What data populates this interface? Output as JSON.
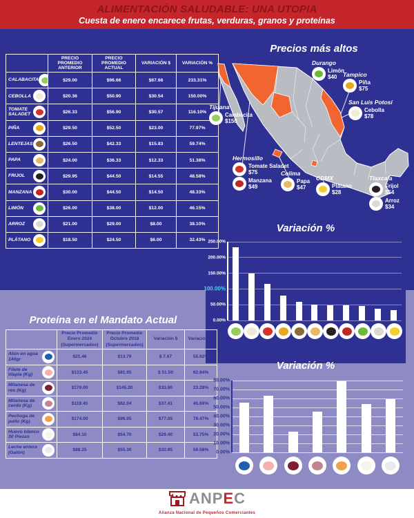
{
  "header": {
    "title": "ALIMENTACIÓN SALUDABLE: UNA UTOPIA",
    "subtitle": "Cuesta de enero encarece frutas, verduras, granos y proteínas"
  },
  "produce_table": {
    "columns": [
      "PRECIO  PROMEDIO ANTERIOR",
      "PRECIO  PROMEDIO ACTUAL",
      "VARIACIÓN $",
      "VARIACIÓN %"
    ],
    "rows": [
      {
        "name": "CALABACITA",
        "icon": "calabacita",
        "anterior": "$29.00",
        "actual": "$96.66",
        "variacion": "$67.66",
        "pct": "233.31%"
      },
      {
        "name": "CEBOLLA",
        "icon": "cebolla",
        "anterior": "$20.36",
        "actual": "$50.90",
        "variacion": "$30.54",
        "pct": "150.00%"
      },
      {
        "name": "TOMATE SALADET",
        "icon": "tomate",
        "anterior": "$26.33",
        "actual": "$56.90",
        "variacion": "$30.57",
        "pct": "116.10%"
      },
      {
        "name": "PIÑA",
        "icon": "pina",
        "anterior": "$29.50",
        "actual": "$52.50",
        "variacion": "$23.00",
        "pct": "77.97%"
      },
      {
        "name": "LENTEJAS",
        "icon": "lentejas",
        "anterior": "$26.50",
        "actual": "$42.33",
        "variacion": "$15.83",
        "pct": "59.74%"
      },
      {
        "name": "PAPA",
        "icon": "papa",
        "anterior": "$24.00",
        "actual": "$36.33",
        "variacion": "$12.33",
        "pct": "51.38%"
      },
      {
        "name": "FRIJOL",
        "icon": "frijol",
        "anterior": "$29.95",
        "actual": "$44.50",
        "variacion": "$14.55",
        "pct": "48.58%"
      },
      {
        "name": "MANZANA",
        "icon": "manzana",
        "anterior": "$30.00",
        "actual": "$44.50",
        "variacion": "$14.50",
        "pct": "48.33%"
      },
      {
        "name": "LIMÓN",
        "icon": "limon",
        "anterior": "$26.00",
        "actual": "$38.00",
        "variacion": "$12.00",
        "pct": "46.15%"
      },
      {
        "name": "ARROZ",
        "icon": "arroz",
        "anterior": "$21.00",
        "actual": "$29.00",
        "variacion": "$8.00",
        "pct": "38.10%"
      },
      {
        "name": "PLÁTANO",
        "icon": "platano",
        "anterior": "$18.50",
        "actual": "$24.50",
        "variacion": "$6.00",
        "pct": "32.43%"
      }
    ]
  },
  "map": {
    "title": "Precios más altos",
    "locations": [
      {
        "id": "tijuana",
        "city": "Tijuana",
        "items": [
          {
            "icon": "calabacita",
            "name": "Calabacita",
            "price": "$150"
          }
        ]
      },
      {
        "id": "durango",
        "city": "Durango",
        "items": [
          {
            "icon": "limon",
            "name": "Limón",
            "price": "$40"
          }
        ]
      },
      {
        "id": "tampico",
        "city": "Tampico",
        "items": [
          {
            "icon": "pina",
            "name": "Piña",
            "price": "$75"
          }
        ]
      },
      {
        "id": "slp",
        "city": "San Luis Potosí",
        "items": [
          {
            "icon": "cebolla",
            "name": "Cebolla",
            "price": "$78"
          }
        ]
      },
      {
        "id": "hermosillo",
        "city": "Hermosillo",
        "items": [
          {
            "icon": "tomate",
            "name": "Tomate Saladet",
            "price": "$75"
          },
          {
            "icon": "manzana",
            "name": "Manzana",
            "price": "$49"
          }
        ]
      },
      {
        "id": "colima",
        "city": "Colima",
        "items": [
          {
            "icon": "papa",
            "name": "Papa",
            "price": "$47"
          }
        ]
      },
      {
        "id": "cdmx",
        "city": "CDMX",
        "items": [
          {
            "icon": "platano",
            "name": "Plátano",
            "price": "$28"
          }
        ]
      },
      {
        "id": "tlaxcala",
        "city": "Tlaxcala",
        "items": [
          {
            "icon": "frijol",
            "name": "Frijol",
            "price": "$54"
          },
          {
            "icon": "arroz",
            "name": "Arroz",
            "price": "$34"
          }
        ]
      }
    ]
  },
  "chart_data": [
    {
      "type": "bar",
      "title": "Variación %",
      "categories": [
        "Calabacita",
        "Cebolla",
        "Tomate Saladet",
        "Piña",
        "Lentejas",
        "Papa",
        "Frijol",
        "Manzana",
        "Limón",
        "Arroz",
        "Plátano"
      ],
      "icons": [
        "calabacita",
        "cebolla",
        "tomate",
        "pina",
        "lentejas",
        "papa",
        "frijol",
        "manzana",
        "limon",
        "arroz",
        "platano"
      ],
      "values": [
        233.31,
        150.0,
        116.1,
        77.97,
        59.74,
        51.38,
        48.58,
        48.33,
        46.15,
        38.1,
        32.43
      ],
      "ylim": [
        0,
        250
      ],
      "yticks": [
        "0.00%",
        "50.00%",
        "100.00%",
        "150.00%",
        "200.00%",
        "250.00%"
      ],
      "highlight_tick": "100.00%",
      "grid": true,
      "bar_color": "#ffffff"
    },
    {
      "type": "bar",
      "title": "Variación %",
      "categories": [
        "Atún en agua",
        "Filete de tilapia",
        "Milanesa de res",
        "Milanesa de cerdo",
        "Pechuga de pollo",
        "Huevo blanco",
        "Leche entera"
      ],
      "icons": [
        "atun",
        "tilapia",
        "res",
        "cerdo",
        "pollo",
        "huevo",
        "leche"
      ],
      "values": [
        55.62,
        62.84,
        23.28,
        45.6,
        79.47,
        53.75,
        59.58
      ],
      "ylim": [
        0,
        80
      ],
      "yticks": [
        "0.00%",
        "10.00%",
        "20.00%",
        "30.00%",
        "40.00%",
        "50.00%",
        "60.00%",
        "70.00%",
        "80.00%"
      ],
      "grid": true,
      "bar_color": "#ffffff"
    }
  ],
  "protein_table": {
    "title": "Proteína en el Mandato Actual",
    "columns": [
      "Precio Promedio Enero 2024 (Supermercados)",
      "Precio Promedio Octubre 2018 (Supermercados)",
      "Variación $",
      "Variación %"
    ],
    "rows": [
      {
        "name": "Atún en agua 140gr",
        "icon": "atun",
        "enero": "$21.46",
        "octubre": "$13.79",
        "variacion": "$ 7.67",
        "pct": "55.62%"
      },
      {
        "name": "Filete de tilapia (Kg)",
        "icon": "tilapia",
        "enero": "$133.45",
        "octubre": "$81.95",
        "variacion": "$ 51.50",
        "pct": "62.84%"
      },
      {
        "name": "Milanesa de res (Kg)",
        "icon": "res",
        "enero": "$179.00",
        "octubre": "$145.20",
        "variacion": "$33.80",
        "pct": "23.28%"
      },
      {
        "name": "Milanesa de cerdo (Kg)",
        "icon": "cerdo",
        "enero": "$119.45",
        "octubre": "$82.04",
        "variacion": "$37.41",
        "pct": "45.60%"
      },
      {
        "name": "Pechuga de pollo (Kg)",
        "icon": "pollo",
        "enero": "$174.00",
        "octubre": "$96.95",
        "variacion": "$77.05",
        "pct": "79.47%"
      },
      {
        "name": "Huevo blanco 30 Piezas",
        "icon": "huevo",
        "enero": "$84.10",
        "octubre": "$54.70",
        "variacion": "$29.40",
        "pct": "53.75%"
      },
      {
        "name": "Leche entera (Galón)",
        "icon": "leche",
        "enero": "$88.25",
        "octubre": "$55.30",
        "variacion": "$32.95",
        "pct": "59.58%"
      }
    ]
  },
  "footer": {
    "logo_gray1": "ANP",
    "logo_red": "E",
    "logo_gray2": "C",
    "tagline": "Alianza Nacional de Pequeños Comerciantes"
  },
  "colors": {
    "background": "#2e3192",
    "panel_lavender": "#8e8bc4",
    "header_red": "#c4262b",
    "header_title": "#8c1417",
    "accent_cyan": "#41d6f3",
    "map_state_gray": "#b9bcc3",
    "map_highlight_orange": "#f26430",
    "bar_white": "#ffffff"
  },
  "icon_colors": {
    "calabacita": "#9acb5e",
    "cebolla": "#f1ead8",
    "tomate": "#d8332a",
    "pina": "#e8a81c",
    "lentejas": "#8a6b3c",
    "papa": "#e7b968",
    "frijol": "#262024",
    "manzana": "#bf2724",
    "limon": "#6cba3a",
    "arroz": "#dcd9d3",
    "platano": "#f4ce2f",
    "atun": "#1f5fae",
    "tilapia": "#f5b1ac",
    "res": "#7c2130",
    "cerdo": "#c08391",
    "pollo": "#f0a14e",
    "huevo": "#f7f4ee",
    "leche": "#e8ebee"
  }
}
